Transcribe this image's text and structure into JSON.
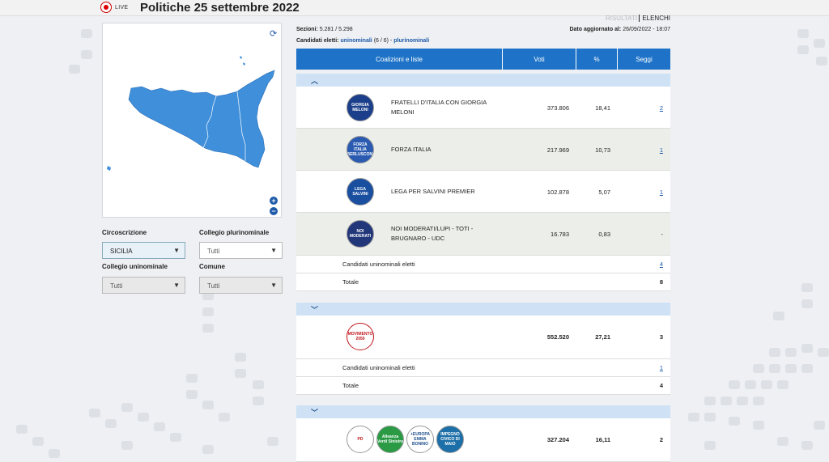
{
  "header": {
    "live": "LIVE",
    "title": "Politiche 25 settembre 2022"
  },
  "tabs": {
    "risultati": "RISULTATI",
    "elenchi": "ELENCHI"
  },
  "meta": {
    "sezioni_label": "Sezioni:",
    "sezioni_value": "5.281 / 5.298",
    "dato_label": "Dato aggiornato al:",
    "dato_value": "26/09/2022 - 18:07",
    "candidati_label": "Candidati eletti:",
    "uninominali": "uninominali",
    "uninominali_count": "(6 / 6)",
    "separator": "-",
    "plurinominali": "plurinominali"
  },
  "filters": {
    "circoscrizione_label": "Circoscrizione",
    "circoscrizione_value": "SICILIA",
    "plurinominale_label": "Collegio plurinominale",
    "plurinominale_value": "Tutti",
    "uninominale_label": "Collegio uninominale",
    "uninominale_value": "Tutti",
    "comune_label": "Comune",
    "comune_value": "Tutti"
  },
  "table": {
    "headers": {
      "coalizioni": "Coalizioni e liste",
      "voti": "Voti",
      "pct": "%",
      "seggi": "Seggi"
    },
    "group1": {
      "parties": [
        {
          "name": "FRATELLI D'ITALIA CON GIORGIA MELONI",
          "logo": "GIORGIA MELONI",
          "votes": "373.806",
          "pct": "18,41",
          "seats": "2"
        },
        {
          "name": "FORZA ITALIA",
          "logo": "FORZA ITALIA BERLUSCONI",
          "votes": "217.969",
          "pct": "10,73",
          "seats": "1"
        },
        {
          "name": "LEGA PER SALVINI PREMIER",
          "logo": "LEGA SALVINI",
          "votes": "102.878",
          "pct": "5,07",
          "seats": "1"
        },
        {
          "name": "NOI MODERATI/LUPI - TOTI - BRUGNARO - UDC",
          "logo": "NOI MODERATI",
          "votes": "16.783",
          "pct": "0,83",
          "seats": "-"
        }
      ],
      "candidati_label": "Candidati uninominali eletti",
      "candidati_value": "4",
      "totale_label": "Totale",
      "totale_value": "8"
    },
    "group2": {
      "logo": "MOVIMENTO 2050",
      "votes": "552.520",
      "pct": "27,21",
      "seats": "3",
      "candidati_label": "Candidati uninominali eletti",
      "candidati_value": "1",
      "totale_label": "Totale",
      "totale_value": "4"
    },
    "group3": {
      "logos": [
        "PD",
        "Alleanza Verdi Sinistra",
        "+EUROPA EMMA BONINO",
        "IMPEGNO CIVICO DI MAIO"
      ],
      "votes": "327.204",
      "pct": "16,11",
      "seats": "2"
    }
  },
  "colors": {
    "accent": "#1e73c8",
    "map": "#3f8fdb"
  }
}
